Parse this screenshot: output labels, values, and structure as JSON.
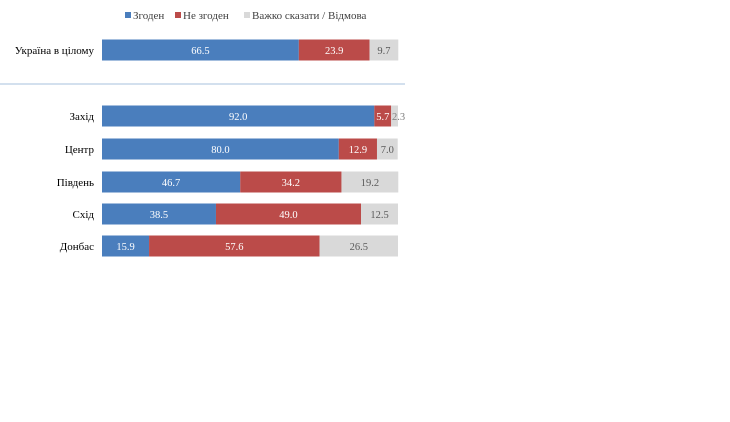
{
  "chart_data": {
    "type": "bar",
    "stacked": true,
    "orientation": "horizontal",
    "title": "",
    "xlabel": "",
    "ylabel": "",
    "xlim": [
      0,
      100
    ],
    "grid": false,
    "legend_position": "top",
    "categories": [
      "Україна в цілому",
      "Захід",
      "Центр",
      "Південь",
      "Схід",
      "Донбас"
    ],
    "group_separator_after": 0,
    "series": [
      {
        "name": "Згоден",
        "color": "#4a7ebd",
        "values": [
          66.5,
          92.0,
          80.0,
          46.7,
          38.5,
          15.9
        ]
      },
      {
        "name": "Не згоден",
        "color": "#bb4b49",
        "values": [
          23.9,
          5.7,
          12.9,
          34.2,
          49.0,
          57.6
        ]
      },
      {
        "name": "Важко сказати / Відмова",
        "color": "#d9d9d9",
        "values": [
          9.7,
          2.3,
          7.0,
          19.2,
          12.5,
          26.5
        ]
      }
    ],
    "data_labels": [
      [
        "66.5",
        "23.9",
        "9.7"
      ],
      [
        "92.0",
        "5.7",
        "2.3"
      ],
      [
        "80.0",
        "12.9",
        "7.0"
      ],
      [
        "46.7",
        "34.2",
        "19.2"
      ],
      [
        "38.5",
        "49.0",
        "12.5"
      ],
      [
        "15.9",
        "57.6",
        "26.5"
      ]
    ]
  }
}
